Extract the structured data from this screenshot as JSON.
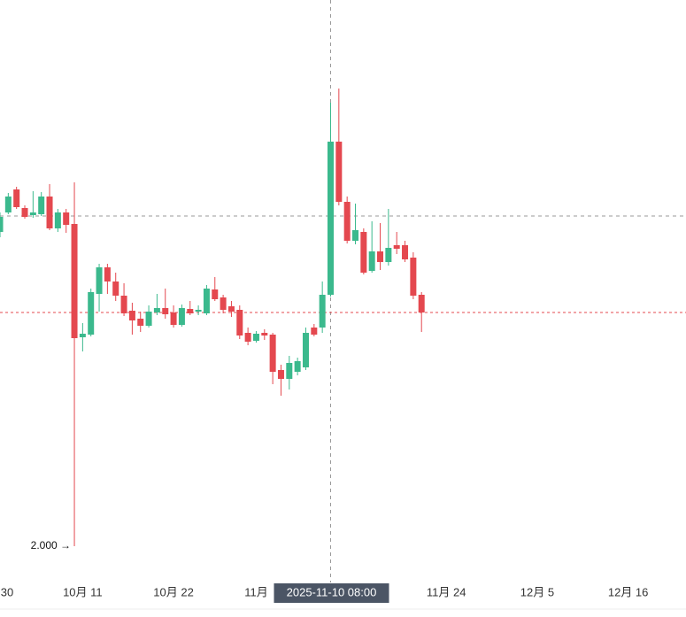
{
  "chart_data": {
    "type": "candlestick",
    "x": [
      "2025-10-01",
      "2025-10-02",
      "2025-10-03",
      "2025-10-04",
      "2025-10-05",
      "2025-10-06",
      "2025-10-07",
      "2025-10-08",
      "2025-10-09",
      "2025-10-10",
      "2025-10-11",
      "2025-10-12",
      "2025-10-13",
      "2025-10-14",
      "2025-10-15",
      "2025-10-16",
      "2025-10-17",
      "2025-10-18",
      "2025-10-19",
      "2025-10-20",
      "2025-10-21",
      "2025-10-22",
      "2025-10-23",
      "2025-10-24",
      "2025-10-25",
      "2025-10-26",
      "2025-10-27",
      "2025-10-28",
      "2025-10-29",
      "2025-10-30",
      "2025-10-31",
      "2025-11-01",
      "2025-11-02",
      "2025-11-03",
      "2025-11-04",
      "2025-11-05",
      "2025-11-06",
      "2025-11-07",
      "2025-11-08",
      "2025-11-09",
      "2025-11-10",
      "2025-11-11",
      "2025-11-12",
      "2025-11-13",
      "2025-11-14",
      "2025-11-15",
      "2025-11-16",
      "2025-11-17",
      "2025-11-18",
      "2025-11-19",
      "2025-11-20",
      "2025-11-21"
    ],
    "open": [
      2.71,
      2.754,
      2.806,
      2.764,
      2.748,
      2.75,
      2.79,
      2.718,
      2.754,
      2.728,
      2.472,
      2.478,
      2.57,
      2.63,
      2.598,
      2.566,
      2.532,
      2.514,
      2.498,
      2.528,
      2.538,
      2.528,
      2.5,
      2.536,
      2.53,
      2.526,
      2.58,
      2.562,
      2.542,
      2.534,
      2.482,
      2.464,
      2.482,
      2.478,
      2.398,
      2.378,
      2.394,
      2.404,
      2.494,
      2.494,
      2.568,
      2.914,
      2.778,
      2.69,
      2.71,
      2.622,
      2.666,
      2.642,
      2.68,
      2.68,
      2.652,
      2.568
    ],
    "high": [
      2.754,
      2.798,
      2.812,
      2.77,
      2.802,
      2.8,
      2.818,
      2.762,
      2.762,
      2.822,
      2.504,
      2.582,
      2.638,
      2.638,
      2.618,
      2.594,
      2.55,
      2.53,
      2.544,
      2.57,
      2.582,
      2.544,
      2.546,
      2.554,
      2.544,
      2.59,
      2.608,
      2.568,
      2.554,
      2.544,
      2.494,
      2.486,
      2.49,
      2.482,
      2.41,
      2.43,
      2.426,
      2.494,
      2.502,
      2.598,
      3.002,
      3.034,
      2.79,
      2.774,
      2.718,
      2.734,
      2.73,
      2.762,
      2.71,
      2.69,
      2.664,
      2.574
    ],
    "low": [
      2.698,
      2.75,
      2.762,
      2.74,
      2.742,
      2.746,
      2.714,
      2.71,
      2.708,
      2.0,
      2.44,
      2.474,
      2.53,
      2.57,
      2.554,
      2.52,
      2.478,
      2.484,
      2.494,
      2.522,
      2.514,
      2.494,
      2.496,
      2.522,
      2.522,
      2.522,
      2.554,
      2.526,
      2.518,
      2.468,
      2.454,
      2.46,
      2.466,
      2.366,
      2.34,
      2.354,
      2.386,
      2.398,
      2.474,
      2.482,
      2.564,
      2.77,
      2.684,
      2.682,
      2.614,
      2.618,
      2.624,
      2.634,
      2.66,
      2.642,
      2.558,
      2.484
    ],
    "close": [
      2.744,
      2.79,
      2.766,
      2.744,
      2.754,
      2.79,
      2.718,
      2.754,
      2.726,
      2.47,
      2.48,
      2.574,
      2.63,
      2.598,
      2.566,
      2.526,
      2.51,
      2.498,
      2.53,
      2.538,
      2.524,
      2.5,
      2.538,
      2.526,
      2.534,
      2.582,
      2.558,
      2.534,
      2.53,
      2.476,
      2.462,
      2.48,
      2.476,
      2.394,
      2.378,
      2.414,
      2.418,
      2.482,
      2.478,
      2.568,
      2.914,
      2.778,
      2.69,
      2.714,
      2.618,
      2.666,
      2.642,
      2.674,
      2.672,
      2.648,
      2.566,
      2.528
    ],
    "up_color": "#3bb98d",
    "down_color": "#e4484f",
    "xlim": [
      "2025-10-01",
      "2025-12-23"
    ],
    "xticks": [
      {
        "value": "2025-09-30",
        "label": "30"
      },
      {
        "value": "2025-10-11",
        "label": "10月 11"
      },
      {
        "value": "2025-10-22",
        "label": "10月 22"
      },
      {
        "value": "2025-11-01",
        "label": "11月"
      },
      {
        "value": "2025-11-24",
        "label": "11月 24"
      },
      {
        "value": "2025-12-05",
        "label": "12月 5"
      },
      {
        "value": "2025-12-16",
        "label": "12月 16"
      }
    ],
    "ylim": [
      1.914,
      3.234
    ],
    "annotations": [
      {
        "x": "2025-10-10",
        "y": 2.0,
        "label": "2.000 →"
      }
    ],
    "crosshair": {
      "x": "2025-11-10",
      "y": 2.746,
      "label": "2025-11-10 08:00"
    }
  }
}
